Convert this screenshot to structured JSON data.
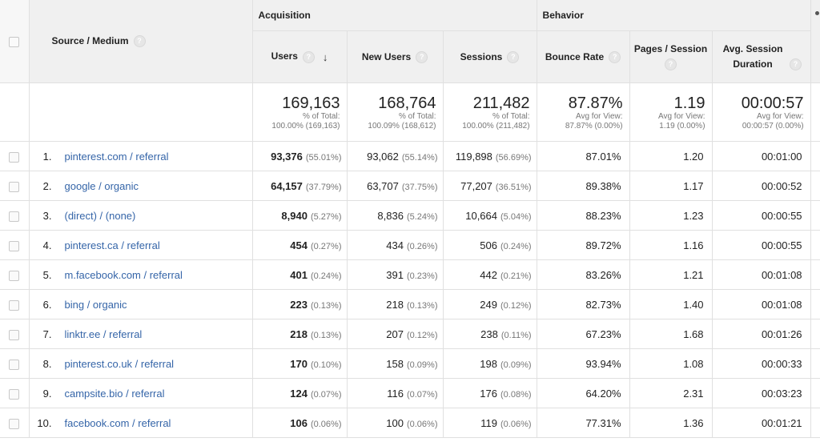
{
  "groups": {
    "acquisition": "Acquisition",
    "behavior": "Behavior"
  },
  "columns": {
    "source_medium": "Source / Medium",
    "users": "Users",
    "new_users": "New Users",
    "sessions": "Sessions",
    "bounce_rate": "Bounce Rate",
    "pages_session": "Pages / Session",
    "avg_duration": "Avg. Session Duration"
  },
  "totals": {
    "users": {
      "value": "169,163",
      "l1": "% of Total:",
      "l2": "100.00% (169,163)"
    },
    "new_users": {
      "value": "168,764",
      "l1": "% of Total:",
      "l2": "100.09% (168,612)"
    },
    "sessions": {
      "value": "211,482",
      "l1": "% of Total:",
      "l2": "100.00% (211,482)"
    },
    "bounce_rate": {
      "value": "87.87%",
      "l1": "Avg for View:",
      "l2": "87.87% (0.00%)"
    },
    "pages_session": {
      "value": "1.19",
      "l1": "Avg for View:",
      "l2": "1.19 (0.00%)"
    },
    "avg_duration": {
      "value": "00:00:57",
      "l1": "Avg for View:",
      "l2": "00:00:57 (0.00%)"
    }
  },
  "rows": [
    {
      "idx": "1.",
      "source": "pinterest.com / referral",
      "users": "93,376",
      "users_pct": "(55.01%)",
      "new_users": "93,062",
      "new_users_pct": "(55.14%)",
      "sessions": "119,898",
      "sessions_pct": "(56.69%)",
      "bounce": "87.01%",
      "pages": "1.20",
      "duration": "00:01:00"
    },
    {
      "idx": "2.",
      "source": "google / organic",
      "users": "64,157",
      "users_pct": "(37.79%)",
      "new_users": "63,707",
      "new_users_pct": "(37.75%)",
      "sessions": "77,207",
      "sessions_pct": "(36.51%)",
      "bounce": "89.38%",
      "pages": "1.17",
      "duration": "00:00:52"
    },
    {
      "idx": "3.",
      "source": "(direct) / (none)",
      "users": "8,940",
      "users_pct": "(5.27%)",
      "new_users": "8,836",
      "new_users_pct": "(5.24%)",
      "sessions": "10,664",
      "sessions_pct": "(5.04%)",
      "bounce": "88.23%",
      "pages": "1.23",
      "duration": "00:00:55"
    },
    {
      "idx": "4.",
      "source": "pinterest.ca / referral",
      "users": "454",
      "users_pct": "(0.27%)",
      "new_users": "434",
      "new_users_pct": "(0.26%)",
      "sessions": "506",
      "sessions_pct": "(0.24%)",
      "bounce": "89.72%",
      "pages": "1.16",
      "duration": "00:00:55"
    },
    {
      "idx": "5.",
      "source": "m.facebook.com / referral",
      "users": "401",
      "users_pct": "(0.24%)",
      "new_users": "391",
      "new_users_pct": "(0.23%)",
      "sessions": "442",
      "sessions_pct": "(0.21%)",
      "bounce": "83.26%",
      "pages": "1.21",
      "duration": "00:01:08"
    },
    {
      "idx": "6.",
      "source": "bing / organic",
      "users": "223",
      "users_pct": "(0.13%)",
      "new_users": "218",
      "new_users_pct": "(0.13%)",
      "sessions": "249",
      "sessions_pct": "(0.12%)",
      "bounce": "82.73%",
      "pages": "1.40",
      "duration": "00:01:08"
    },
    {
      "idx": "7.",
      "source": "linktr.ee / referral",
      "users": "218",
      "users_pct": "(0.13%)",
      "new_users": "207",
      "new_users_pct": "(0.12%)",
      "sessions": "238",
      "sessions_pct": "(0.11%)",
      "bounce": "67.23%",
      "pages": "1.68",
      "duration": "00:01:26"
    },
    {
      "idx": "8.",
      "source": "pinterest.co.uk / referral",
      "users": "170",
      "users_pct": "(0.10%)",
      "new_users": "158",
      "new_users_pct": "(0.09%)",
      "sessions": "198",
      "sessions_pct": "(0.09%)",
      "bounce": "93.94%",
      "pages": "1.08",
      "duration": "00:00:33"
    },
    {
      "idx": "9.",
      "source": "campsite.bio / referral",
      "users": "124",
      "users_pct": "(0.07%)",
      "new_users": "116",
      "new_users_pct": "(0.07%)",
      "sessions": "176",
      "sessions_pct": "(0.08%)",
      "bounce": "64.20%",
      "pages": "2.31",
      "duration": "00:03:23"
    },
    {
      "idx": "10.",
      "source": "facebook.com / referral",
      "users": "106",
      "users_pct": "(0.06%)",
      "new_users": "100",
      "new_users_pct": "(0.06%)",
      "sessions": "119",
      "sessions_pct": "(0.06%)",
      "bounce": "77.31%",
      "pages": "1.36",
      "duration": "00:01:21"
    }
  ],
  "icons": {
    "help": "help-question-icon",
    "sort": "sort-down-arrow-icon"
  },
  "colors": {
    "header_bg": "#f0f0f0",
    "link": "#3565a8",
    "muted": "#777777",
    "border": "#e0e0e0"
  }
}
